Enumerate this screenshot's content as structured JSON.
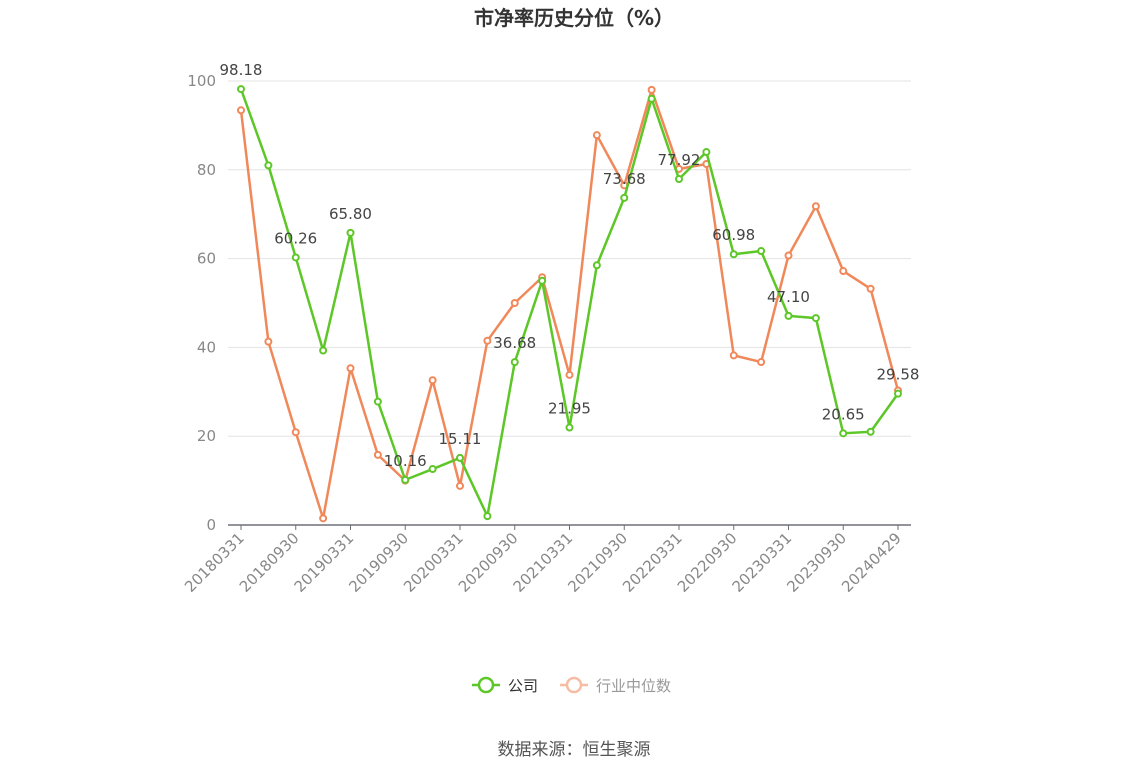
{
  "chart_data": {
    "type": "line",
    "title": "市净率历史分位（%）",
    "source": "数据来源：恒生聚源",
    "ylim": [
      0,
      100
    ],
    "y_ticks": [
      0,
      20,
      40,
      60,
      80,
      100
    ],
    "x": [
      "20180331",
      "20180630",
      "20180930",
      "20181231",
      "20190331",
      "20190630",
      "20190930",
      "20191231",
      "20200331",
      "20200630",
      "20200930",
      "20201231",
      "20210331",
      "20210630",
      "20210930",
      "20211231",
      "20220331",
      "20220630",
      "20220930",
      "20221231",
      "20230331",
      "20230630",
      "20230930",
      "20231231",
      "20240429"
    ],
    "x_tick_labels": [
      "20180331",
      "20180930",
      "20190331",
      "20190930",
      "20200331",
      "20200930",
      "20210331",
      "20210930",
      "20220331",
      "20220930",
      "20230331",
      "20230930",
      "20240429"
    ],
    "grid": true,
    "legend_position": "bottom",
    "series": [
      {
        "name": "公司",
        "color": "#5cc727",
        "values": [
          98.18,
          81.0,
          60.26,
          39.3,
          65.8,
          27.8,
          10.16,
          12.6,
          15.11,
          2.0,
          36.68,
          55.0,
          21.95,
          58.5,
          73.68,
          96.0,
          77.92,
          84.0,
          60.98,
          61.7,
          47.1,
          46.6,
          20.65,
          21.0,
          29.58
        ],
        "labels": [
          "98.18",
          "",
          "60.26",
          "",
          "65.80",
          "",
          "10.16",
          "",
          "15.11",
          "",
          "36.68",
          "",
          "21.95",
          "",
          "73.68",
          "",
          "77.92",
          "",
          "60.98",
          "",
          "47.10",
          "",
          "20.65",
          "",
          "29.58"
        ]
      },
      {
        "name": "行业中位数",
        "color": "#f0885a",
        "values": [
          93.4,
          41.3,
          20.9,
          1.5,
          35.3,
          15.8,
          10.0,
          32.6,
          8.8,
          41.5,
          50.0,
          55.8,
          33.8,
          87.8,
          76.5,
          98.0,
          80.2,
          81.3,
          38.2,
          36.7,
          60.7,
          71.8,
          57.2,
          53.2,
          30.3
        ]
      }
    ]
  }
}
